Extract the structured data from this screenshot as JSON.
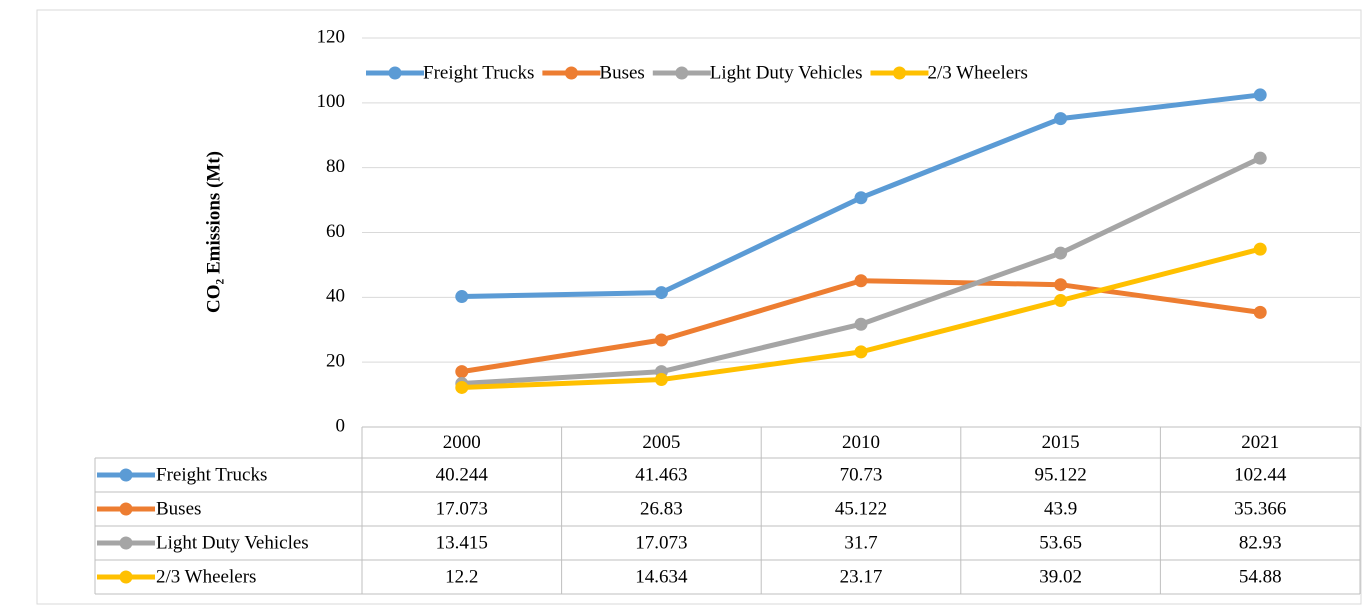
{
  "chart_data": {
    "type": "line",
    "ylabel": "CO₂ Emissions (Mt)",
    "categories": [
      "2000",
      "2005",
      "2010",
      "2015",
      "2021"
    ],
    "series": [
      {
        "name": "Freight Trucks",
        "color": "#5b9bd5",
        "values": [
          40.244,
          41.463,
          70.73,
          95.122,
          102.44
        ]
      },
      {
        "name": "Buses",
        "color": "#ed7d31",
        "values": [
          17.073,
          26.83,
          45.122,
          43.9,
          35.366
        ]
      },
      {
        "name": "Light Duty Vehicles",
        "color": "#a5a5a5",
        "values": [
          13.415,
          17.073,
          31.7,
          53.65,
          82.93
        ]
      },
      {
        "name": "2/3 Wheelers",
        "color": "#ffc000",
        "values": [
          12.2,
          14.634,
          23.17,
          39.02,
          54.88
        ]
      }
    ],
    "ylim": [
      0,
      120
    ],
    "yticks": [
      0,
      20,
      40,
      60,
      80,
      100,
      120
    ],
    "grid": true,
    "legend": "top",
    "data_table": true
  }
}
